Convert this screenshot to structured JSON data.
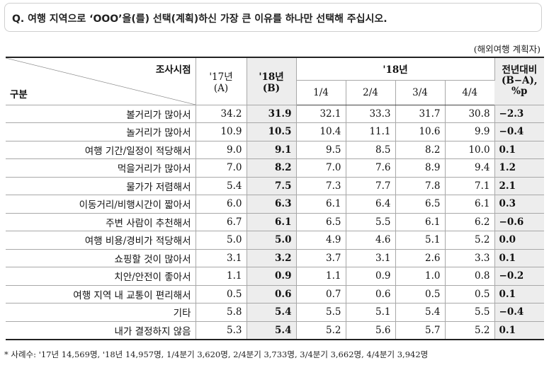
{
  "question": "Q. 여행 지역으로 ‘OOO’을(를) 선택(계획)하신 가장 큰 이유를 하나만 선택해 주십시오.",
  "unit": "(해외여행 계획자)",
  "table": {
    "corner_top": "조사시점",
    "corner_bottom": "구분",
    "col_17": "'17년",
    "col_17_sub": "(A)",
    "col_18": "'18년",
    "col_18_sub": "(B)",
    "group_18": "'18년",
    "quarters": [
      "1/4",
      "2/4",
      "3/4",
      "4/4"
    ],
    "diff_line1": "전년대비",
    "diff_line2": "(B−A),",
    "diff_line3": "%p",
    "rows": [
      {
        "label": "볼거리가 많아서",
        "a": "34.2",
        "b": "31.9",
        "q1": "32.1",
        "q2": "33.3",
        "q3": "31.7",
        "q4": "30.8",
        "diff": "−2.3"
      },
      {
        "label": "놀거리가 많아서",
        "a": "10.9",
        "b": "10.5",
        "q1": "10.4",
        "q2": "11.1",
        "q3": "10.6",
        "q4": "9.9",
        "diff": "−0.4"
      },
      {
        "label": "여행 기간/일정이 적당해서",
        "a": "9.0",
        "b": "9.1",
        "q1": "9.5",
        "q2": "8.5",
        "q3": "8.2",
        "q4": "10.0",
        "diff": "0.1"
      },
      {
        "label": "먹을거리가 많아서",
        "a": "7.0",
        "b": "8.2",
        "q1": "7.0",
        "q2": "7.6",
        "q3": "8.9",
        "q4": "9.4",
        "diff": "1.2"
      },
      {
        "label": "물가가 저렴해서",
        "a": "5.4",
        "b": "7.5",
        "q1": "7.3",
        "q2": "7.7",
        "q3": "7.8",
        "q4": "7.1",
        "diff": "2.1"
      },
      {
        "label": "이동거리/비행시간이 짧아서",
        "a": "6.0",
        "b": "6.3",
        "q1": "6.1",
        "q2": "6.4",
        "q3": "6.5",
        "q4": "6.1",
        "diff": "0.3"
      },
      {
        "label": "주변 사람이 추천해서",
        "a": "6.7",
        "b": "6.1",
        "q1": "6.5",
        "q2": "5.5",
        "q3": "6.1",
        "q4": "6.2",
        "diff": "−0.6"
      },
      {
        "label": "여행 비용/경비가 적당해서",
        "a": "5.0",
        "b": "5.0",
        "q1": "4.9",
        "q2": "4.6",
        "q3": "5.1",
        "q4": "5.2",
        "diff": "0.0"
      },
      {
        "label": "쇼핑할 것이 많아서",
        "a": "3.1",
        "b": "3.2",
        "q1": "3.7",
        "q2": "3.1",
        "q3": "2.6",
        "q4": "3.3",
        "diff": "0.1"
      },
      {
        "label": "치안/안전이 좋아서",
        "a": "1.1",
        "b": "0.9",
        "q1": "1.1",
        "q2": "0.9",
        "q3": "1.0",
        "q4": "0.8",
        "diff": "−0.2"
      },
      {
        "label": "여행 지역 내 교통이 편리해서",
        "a": "0.5",
        "b": "0.6",
        "q1": "0.7",
        "q2": "0.6",
        "q3": "0.5",
        "q4": "0.5",
        "diff": "0.1"
      },
      {
        "label": "기타",
        "a": "5.8",
        "b": "5.4",
        "q1": "5.5",
        "q2": "5.1",
        "q3": "5.4",
        "q4": "5.5",
        "diff": "−0.4"
      },
      {
        "label": "내가 결정하지 않음",
        "a": "5.3",
        "b": "5.4",
        "q1": "5.2",
        "q2": "5.6",
        "q3": "5.7",
        "q4": "5.2",
        "diff": "0.1"
      }
    ]
  },
  "footnote": "* 사례수: '17년 14,569명, '18년 14,957명, 1/4분기 3,620명, 2/4분기 3,733명, 3/4분기 3,662명, 4/4분기 3,942명"
}
